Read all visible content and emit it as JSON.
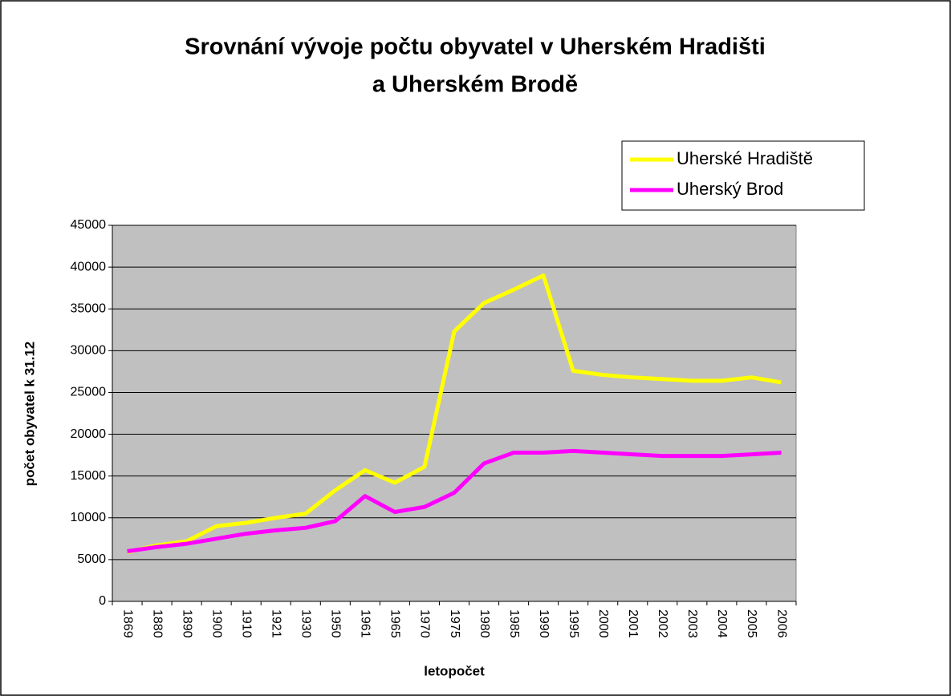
{
  "chart_data": {
    "type": "line",
    "title": "Srovnání vývoje počtu obyvatel v Uherském Hradišti",
    "subtitle": "a Uherském Brodě",
    "x_label": "letopočet",
    "y_label": "počet obyvatel k 31.12",
    "categories": [
      "1869",
      "1880",
      "1890",
      "1900",
      "1910",
      "1921",
      "1930",
      "1950",
      "1961",
      "1965",
      "1970",
      "1975",
      "1980",
      "1985",
      "1990",
      "1995",
      "2000",
      "2001",
      "2002",
      "2003",
      "2004",
      "2005",
      "2006"
    ],
    "series": [
      {
        "name": "Uherské Hradiště",
        "color": "#ffff00",
        "values": [
          5900,
          6700,
          7200,
          9000,
          9400,
          10000,
          10500,
          13300,
          15700,
          14200,
          16100,
          32300,
          35700,
          37300,
          39000,
          27600,
          27100,
          26800,
          26600,
          26400,
          26400,
          26800,
          26200
        ]
      },
      {
        "name": "Uherský Brod",
        "color": "#ff00ff",
        "values": [
          6000,
          6500,
          6900,
          7500,
          8100,
          8500,
          8800,
          9600,
          12600,
          10700,
          11300,
          13000,
          16500,
          17800,
          17800,
          18000,
          17800,
          17600,
          17400,
          17400,
          17400,
          17600,
          17800
        ]
      }
    ],
    "ylim": [
      0,
      45000
    ],
    "yticks": [
      0,
      5000,
      10000,
      15000,
      20000,
      25000,
      30000,
      35000,
      40000,
      45000
    ],
    "grid": true,
    "legend": "top-right",
    "plot_background": "#c0c0c0"
  }
}
